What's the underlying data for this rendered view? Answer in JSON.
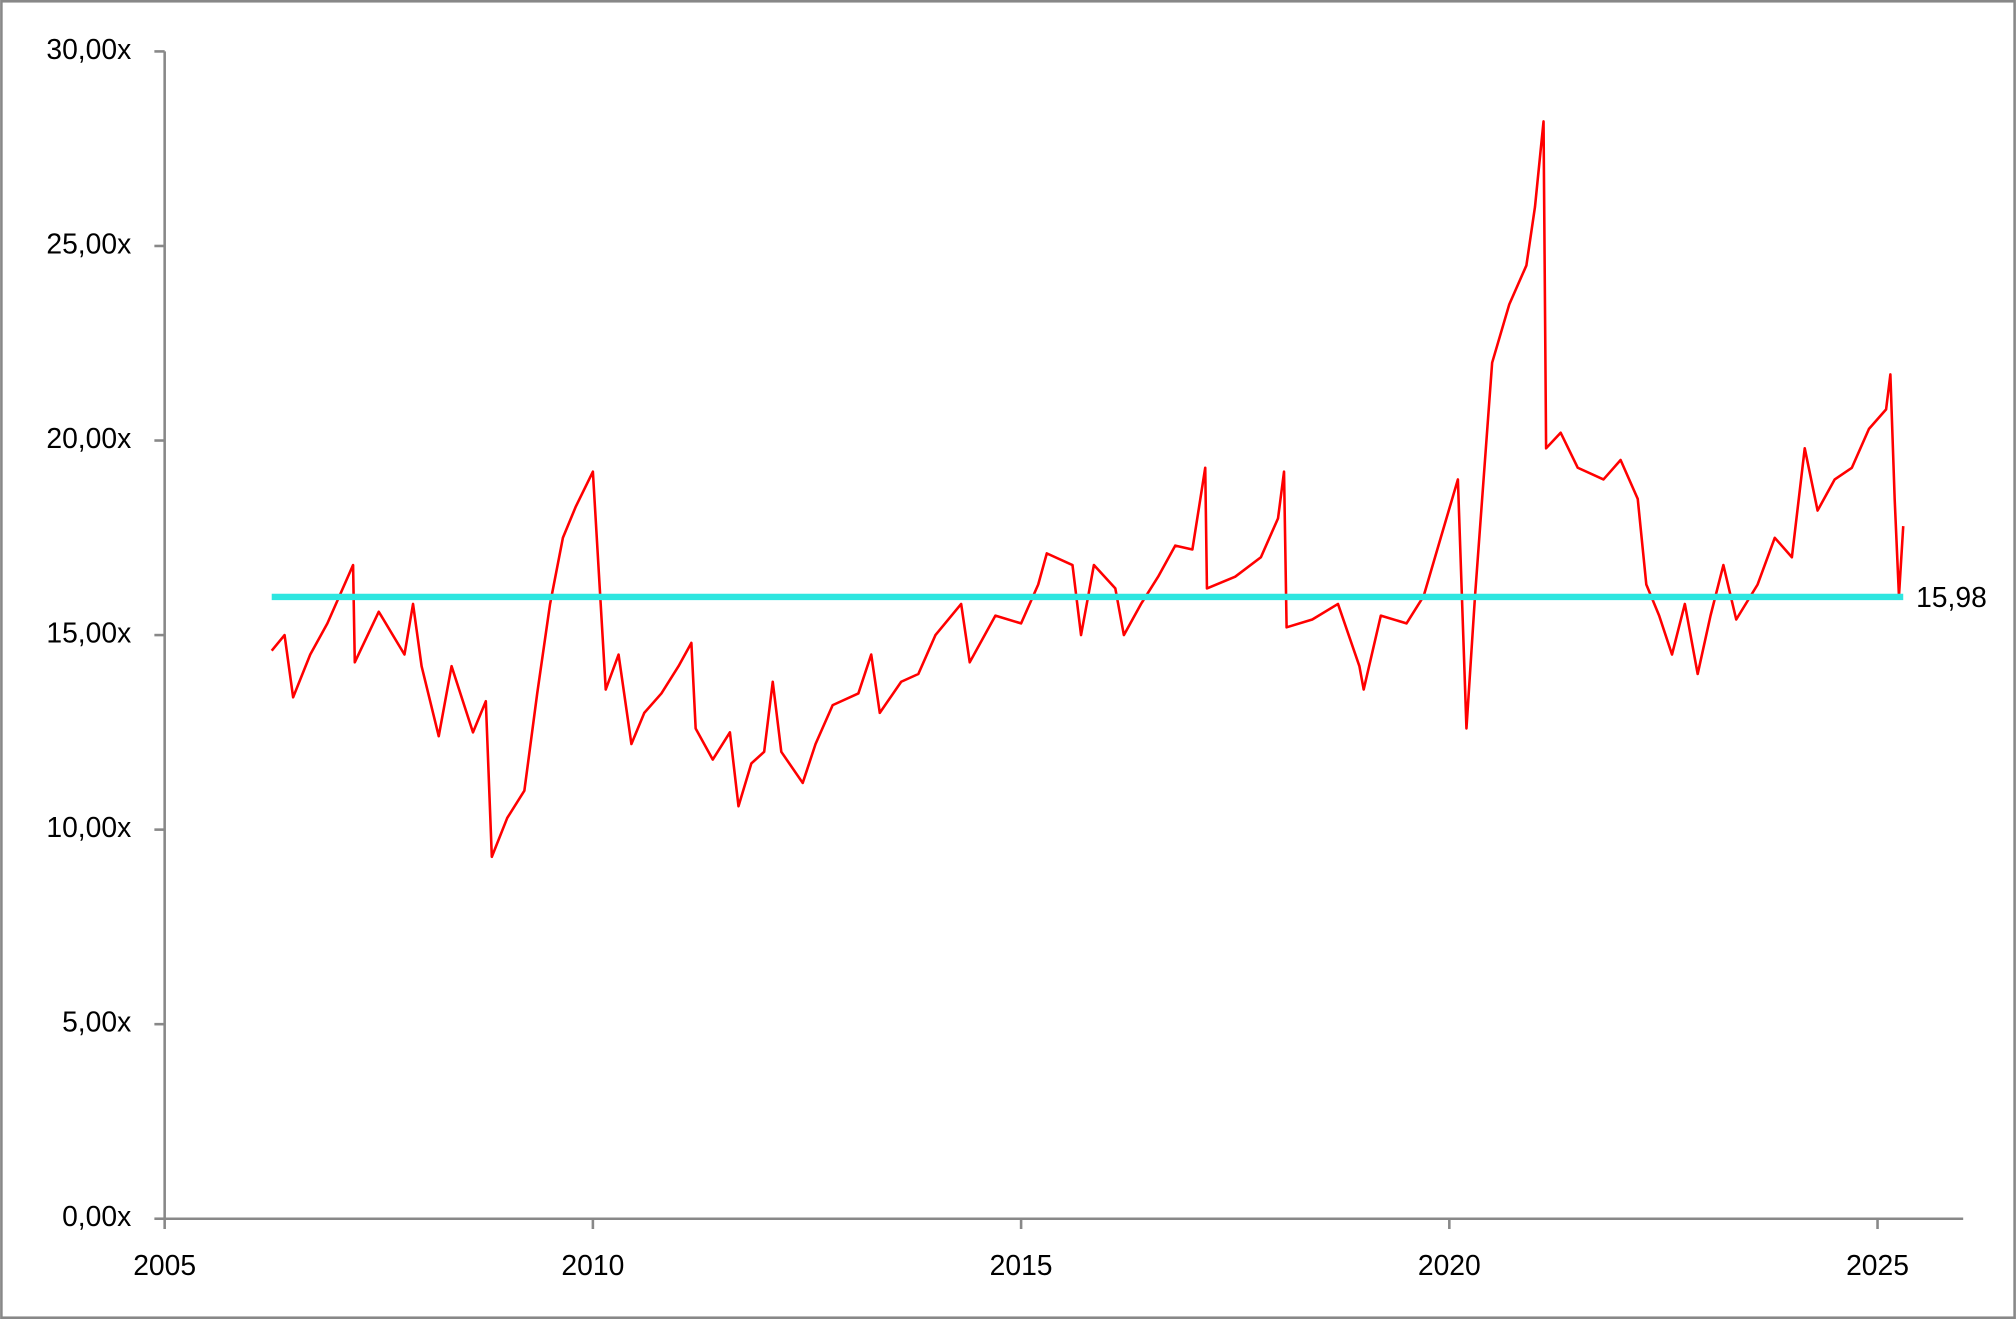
{
  "chart_data": {
    "type": "line",
    "xlim": [
      2005,
      2026
    ],
    "xticks": [
      2005,
      2010,
      2015,
      2020,
      2025
    ],
    "ylim": [
      0,
      30
    ],
    "yticks": [
      {
        "value": 0,
        "label": "0,00x"
      },
      {
        "value": 5,
        "label": "5,00x"
      },
      {
        "value": 10,
        "label": "10,00x"
      },
      {
        "value": 15,
        "label": "15,00x"
      },
      {
        "value": 20,
        "label": "20,00x"
      },
      {
        "value": 25,
        "label": "25,00x"
      },
      {
        "value": 30,
        "label": "30,00x"
      }
    ],
    "series": [
      {
        "color": "#ff0000",
        "x": [
          2006.25,
          2006.4,
          2006.5,
          2006.7,
          2006.9,
          2007.1,
          2007.2,
          2007.22,
          2007.5,
          2007.8,
          2007.9,
          2008.0,
          2008.2,
          2008.35,
          2008.6,
          2008.75,
          2008.82,
          2009.0,
          2009.2,
          2009.35,
          2009.5,
          2009.65,
          2009.8,
          2010.0,
          2010.15,
          2010.3,
          2010.45,
          2010.6,
          2010.8,
          2011.0,
          2011.15,
          2011.2,
          2011.4,
          2011.6,
          2011.7,
          2011.85,
          2012.0,
          2012.1,
          2012.2,
          2012.45,
          2012.6,
          2012.8,
          2013.1,
          2013.25,
          2013.35,
          2013.6,
          2013.8,
          2014.0,
          2014.3,
          2014.4,
          2014.7,
          2015.0,
          2015.2,
          2015.3,
          2015.6,
          2015.7,
          2015.85,
          2016.1,
          2016.2,
          2016.4,
          2016.6,
          2016.8,
          2017.0,
          2017.15,
          2017.17,
          2017.5,
          2017.8,
          2018.0,
          2018.07,
          2018.1,
          2018.4,
          2018.7,
          2018.95,
          2019.0,
          2019.2,
          2019.5,
          2019.7,
          2019.9,
          2020.1,
          2020.2,
          2020.3,
          2020.4,
          2020.5,
          2020.7,
          2020.9,
          2021.0,
          2021.1,
          2021.13,
          2021.3,
          2021.5,
          2021.8,
          2022.0,
          2022.2,
          2022.3,
          2022.45,
          2022.6,
          2022.75,
          2022.9,
          2023.05,
          2023.2,
          2023.35,
          2023.6,
          2023.8,
          2024.0,
          2024.15,
          2024.3,
          2024.5,
          2024.7,
          2024.9,
          2025.1,
          2025.15,
          2025.2,
          2025.25,
          2025.3
        ],
        "values": [
          14.6,
          15.0,
          13.4,
          14.5,
          15.3,
          16.3,
          16.8,
          14.3,
          15.6,
          14.5,
          15.8,
          14.2,
          12.4,
          14.2,
          12.5,
          13.3,
          9.3,
          10.3,
          11.0,
          13.5,
          15.8,
          17.5,
          18.3,
          19.2,
          13.6,
          14.5,
          12.2,
          13.0,
          13.5,
          14.2,
          14.8,
          12.6,
          11.8,
          12.5,
          10.6,
          11.7,
          12.0,
          13.8,
          12.0,
          11.2,
          12.2,
          13.2,
          13.5,
          14.5,
          13.0,
          13.8,
          14.0,
          15.0,
          15.8,
          14.3,
          15.5,
          15.3,
          16.3,
          17.1,
          16.8,
          15.0,
          16.8,
          16.2,
          15.0,
          15.8,
          16.5,
          17.3,
          17.2,
          19.3,
          16.2,
          16.5,
          17.0,
          18.0,
          19.2,
          15.2,
          15.4,
          15.8,
          14.2,
          13.6,
          15.5,
          15.3,
          16.0,
          17.5,
          19.0,
          12.6,
          16.0,
          19.0,
          22.0,
          23.5,
          24.5,
          26.0,
          28.2,
          19.8,
          20.2,
          19.3,
          19.0,
          19.5,
          18.5,
          16.3,
          15.5,
          14.5,
          15.8,
          14.0,
          15.5,
          16.8,
          15.4,
          16.3,
          17.5,
          17.0,
          19.8,
          18.2,
          19.0,
          19.3,
          20.3,
          20.8,
          21.7,
          18.5,
          16.0,
          17.8
        ]
      }
    ],
    "average": {
      "value": 15.98,
      "label": "15,98",
      "x": [
        2006.25,
        2025.3
      ],
      "color": "#2ee6e0"
    }
  }
}
